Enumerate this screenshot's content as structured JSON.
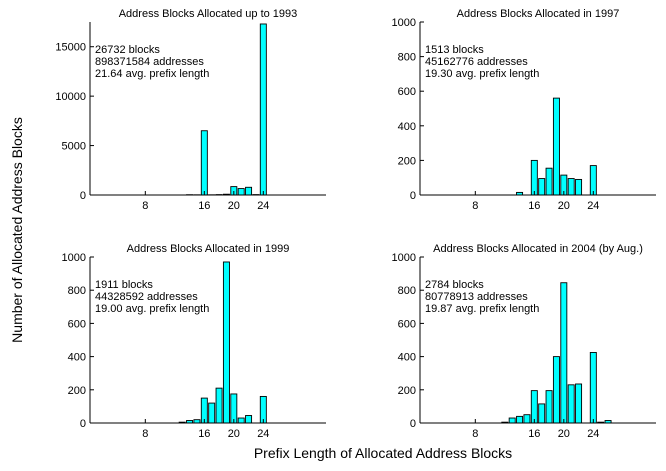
{
  "figure": {
    "ylabel": "Number of Allocated Address Blocks",
    "xlabel": "Prefix Length of Allocated Address Blocks"
  },
  "chart_data": [
    {
      "type": "bar",
      "title": "Address Blocks Allocated up to 1993",
      "annotations": [
        "26732 blocks",
        "898371584 addresses",
        "21.64 avg. prefix length"
      ],
      "xlabel": "",
      "ylabel": "",
      "xlim": [
        0.5,
        32.5
      ],
      "ylim": [
        0,
        17500
      ],
      "xticks": [
        8,
        16,
        20,
        24
      ],
      "yticks": [
        0,
        5000,
        10000,
        15000
      ],
      "x": [
        8,
        9,
        10,
        11,
        12,
        13,
        14,
        15,
        16,
        17,
        18,
        19,
        20,
        21,
        22,
        23,
        24,
        25,
        26,
        27,
        28,
        29,
        30,
        31,
        32
      ],
      "values": [
        0,
        0,
        0,
        0,
        0,
        0,
        30,
        20,
        6500,
        20,
        40,
        80,
        850,
        650,
        780,
        40,
        17300,
        0,
        0,
        0,
        0,
        0,
        0,
        0,
        0
      ],
      "bar_color": "#00ffff",
      "grid": false
    },
    {
      "type": "bar",
      "title": "Address Blocks Allocated in 1997",
      "annotations": [
        "1513 blocks",
        "45162776 addresses",
        "19.30 avg. prefix length"
      ],
      "xlabel": "",
      "ylabel": "",
      "xlim": [
        0.5,
        32.5
      ],
      "ylim": [
        0,
        1000
      ],
      "xticks": [
        8,
        16,
        20,
        24
      ],
      "yticks": [
        0,
        200,
        400,
        600,
        800,
        1000
      ],
      "x": [
        8,
        9,
        10,
        11,
        12,
        13,
        14,
        15,
        16,
        17,
        18,
        19,
        20,
        21,
        22,
        23,
        24,
        25,
        26,
        27,
        28,
        29,
        30,
        31,
        32
      ],
      "values": [
        0,
        0,
        0,
        0,
        0,
        0,
        15,
        0,
        200,
        95,
        155,
        560,
        115,
        95,
        90,
        0,
        170,
        0,
        0,
        0,
        0,
        0,
        0,
        0,
        0
      ],
      "bar_color": "#00ffff",
      "grid": false
    },
    {
      "type": "bar",
      "title": "Address Blocks Allocated in 1999",
      "annotations": [
        "1911 blocks",
        "44328592 addresses",
        "19.00 avg. prefix length"
      ],
      "xlabel": "",
      "ylabel": "",
      "xlim": [
        0.5,
        32.5
      ],
      "ylim": [
        0,
        1000
      ],
      "xticks": [
        8,
        16,
        20,
        24
      ],
      "yticks": [
        0,
        200,
        400,
        600,
        800,
        1000
      ],
      "x": [
        8,
        9,
        10,
        11,
        12,
        13,
        14,
        15,
        16,
        17,
        18,
        19,
        20,
        21,
        22,
        23,
        24,
        25,
        26,
        27,
        28,
        29,
        30,
        31,
        32
      ],
      "values": [
        0,
        0,
        0,
        0,
        0,
        5,
        15,
        20,
        150,
        120,
        210,
        970,
        175,
        30,
        45,
        0,
        160,
        0,
        0,
        0,
        0,
        0,
        0,
        0,
        0
      ],
      "bar_color": "#00ffff",
      "grid": false
    },
    {
      "type": "bar",
      "title": "Address Blocks Allocated in 2004 (by Aug.)",
      "annotations": [
        "2784 blocks",
        "80778913 addresses",
        "19.87 avg. prefix length"
      ],
      "xlabel": "",
      "ylabel": "",
      "xlim": [
        0.5,
        32.5
      ],
      "ylim": [
        0,
        1000
      ],
      "xticks": [
        8,
        16,
        20,
        24
      ],
      "yticks": [
        0,
        200,
        400,
        600,
        800,
        1000
      ],
      "x": [
        8,
        9,
        10,
        11,
        12,
        13,
        14,
        15,
        16,
        17,
        18,
        19,
        20,
        21,
        22,
        23,
        24,
        25,
        26,
        27,
        28,
        29,
        30,
        31,
        32
      ],
      "values": [
        0,
        0,
        0,
        0,
        5,
        30,
        40,
        50,
        195,
        115,
        195,
        400,
        845,
        230,
        235,
        0,
        425,
        5,
        15,
        0,
        0,
        0,
        0,
        0,
        0
      ],
      "bar_color": "#00ffff",
      "grid": false
    }
  ]
}
